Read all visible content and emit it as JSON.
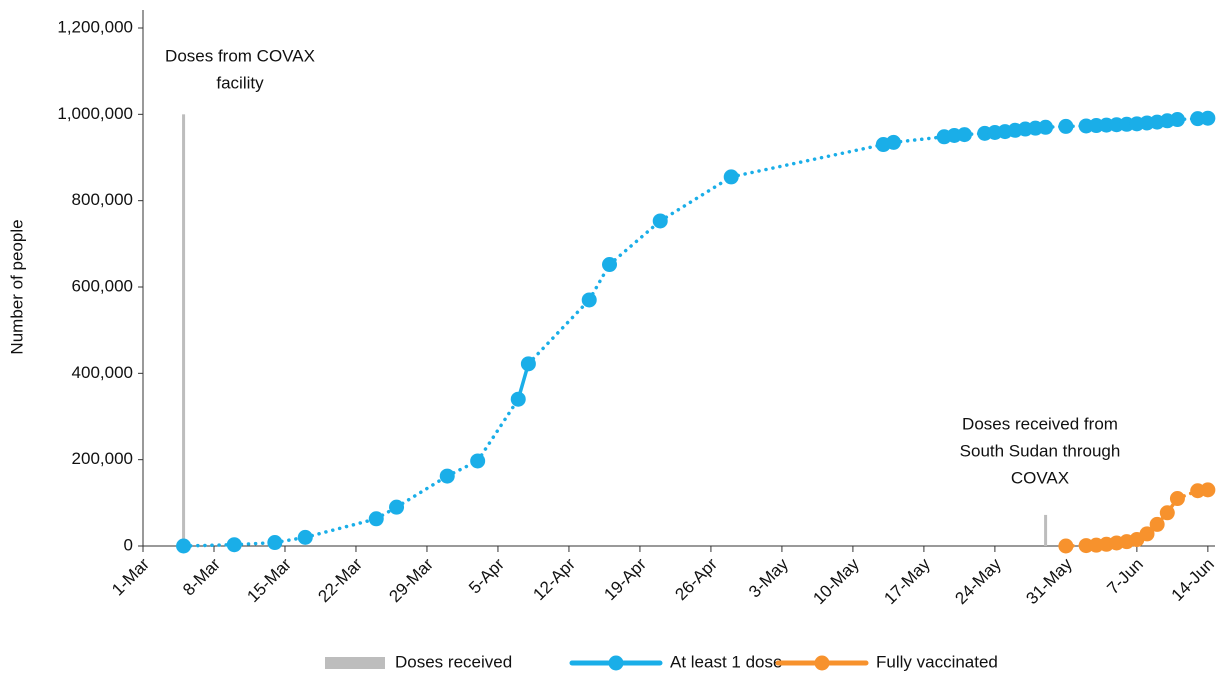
{
  "chart_data": {
    "type": "line",
    "y_label": "Number of people",
    "xlim": [
      "1-Mar",
      "15-Jun"
    ],
    "xticks": [
      "1-Mar",
      "8-Mar",
      "15-Mar",
      "22-Mar",
      "29-Mar",
      "5-Apr",
      "12-Apr",
      "19-Apr",
      "26-Apr",
      "3-May",
      "10-May",
      "17-May",
      "24-May",
      "31-May",
      "7-Jun",
      "14-Jun"
    ],
    "ylim": [
      0,
      1200000
    ],
    "yticks": [
      0,
      {
        "value": 200000,
        "label": "200,000"
      },
      {
        "value": 400000,
        "label": "400,000"
      },
      {
        "value": 600000,
        "label": "600,000"
      },
      {
        "value": 800000,
        "label": "800,000"
      },
      {
        "value": 1000000,
        "label": "1,000,000"
      },
      {
        "value": 1200000,
        "label": "1,200,000"
      }
    ],
    "legend": "bottom",
    "series": [
      {
        "name": "Doses received",
        "type": "bar",
        "color": "#bdbdbd",
        "x": [
          "5-Mar",
          "29-May"
        ],
        "values": [
          1000000,
          72000
        ]
      },
      {
        "name": "At least 1 dose",
        "type": "line",
        "color": "#1aaee8",
        "x": [
          "5-Mar",
          "10-Mar",
          "14-Mar",
          "17-Mar",
          "24-Mar",
          "26-Mar",
          "31-Mar",
          "3-Apr",
          "7-Apr",
          "8-Apr",
          "14-Apr",
          "16-Apr",
          "21-Apr",
          "28-Apr",
          "13-May",
          "14-May",
          "19-May",
          "20-May",
          "21-May",
          "23-May",
          "24-May",
          "25-May",
          "26-May",
          "27-May",
          "28-May",
          "29-May",
          "31-May",
          "2-Jun",
          "3-Jun",
          "4-Jun",
          "5-Jun",
          "6-Jun",
          "7-Jun",
          "8-Jun",
          "9-Jun",
          "10-Jun",
          "11-Jun",
          "13-Jun",
          "14-Jun"
        ],
        "values": [
          0,
          3000,
          8000,
          20000,
          63000,
          90000,
          162000,
          197000,
          340000,
          422000,
          570000,
          652000,
          753000,
          855000,
          930000,
          935000,
          948000,
          951000,
          953000,
          956000,
          958000,
          960000,
          963000,
          966000,
          968000,
          970000,
          972000,
          973000,
          974000,
          975000,
          976000,
          977000,
          978000,
          980000,
          982000,
          985000,
          988000,
          990000,
          991000
        ]
      },
      {
        "name": "Fully vaccinated",
        "type": "line",
        "color": "#f7922d",
        "x": [
          "31-May",
          "2-Jun",
          "3-Jun",
          "4-Jun",
          "5-Jun",
          "6-Jun",
          "7-Jun",
          "8-Jun",
          "9-Jun",
          "10-Jun",
          "11-Jun",
          "13-Jun",
          "14-Jun"
        ],
        "values": [
          0,
          1000,
          2000,
          4000,
          7000,
          10000,
          15000,
          28000,
          50000,
          77000,
          110000,
          128000,
          130000
        ]
      }
    ],
    "annotations": [
      {
        "lines": [
          "Doses from COVAX",
          "facility"
        ]
      },
      {
        "lines": [
          "Doses received from",
          "South Sudan through",
          "COVAX"
        ]
      }
    ]
  }
}
